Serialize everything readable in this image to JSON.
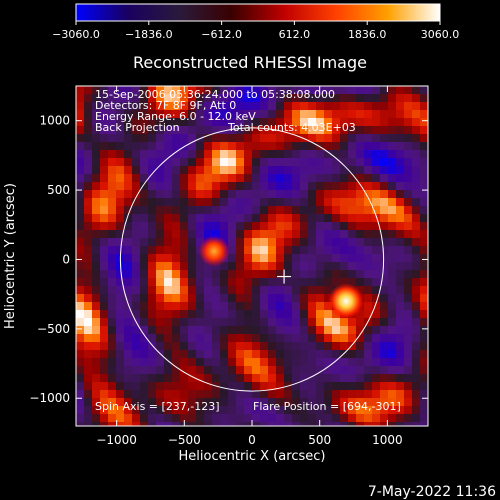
{
  "colorbar": {
    "ticks": [
      "-3060.0",
      "-1836.0",
      "-612.0",
      "612.0",
      "1836.0",
      "3060.0"
    ],
    "min": -3060,
    "max": 3060,
    "colors": [
      "#0000ff",
      "#1a0060",
      "#2a1a3a",
      "#3a0000",
      "#c00000",
      "#ff4000",
      "#ffa000",
      "#ffffff"
    ]
  },
  "chart_data": {
    "type": "heatmap",
    "title": "Reconstructed RHESSI Image",
    "xlabel": "Heliocentric X (arcsec)",
    "ylabel": "Heliocentric Y (arcsec)",
    "xlim": [
      -1300,
      1300
    ],
    "ylim": [
      -1200,
      1250
    ],
    "xticks": [
      -1000,
      -500,
      0,
      500,
      1000
    ],
    "yticks": [
      1000,
      500,
      0,
      -500,
      -1000
    ],
    "xtick_labels": [
      "−1000",
      "−500",
      "0",
      "500",
      "1000"
    ],
    "ytick_labels": [
      "1000",
      "500",
      "0",
      "−500",
      "−1000"
    ],
    "solar_disk": {
      "center": [
        0,
        0
      ],
      "radius": 960
    },
    "spin_axis_marker": [
      237,
      -123
    ],
    "flare_position": [
      694,
      -301
    ],
    "bright_sources": [
      {
        "x": 694,
        "y": -301,
        "peak": 3060
      },
      {
        "x": -280,
        "y": 60,
        "peak": 2300
      }
    ],
    "annotations": [
      "15-Sep-2006 05:36:24.000 to 05:38:08.000",
      "Detectors: 7F 8F 9F, Att 0",
      "Energy Range: 6.0 - 12.0 keV",
      "Back Projection",
      "Total counts: 4.03E+03"
    ],
    "spin_axis_label": "Spin Axis = [237,-123]",
    "flare_position_label": "Flare Position = [694,-301]"
  },
  "timestamp": "7-May-2022 11:36"
}
